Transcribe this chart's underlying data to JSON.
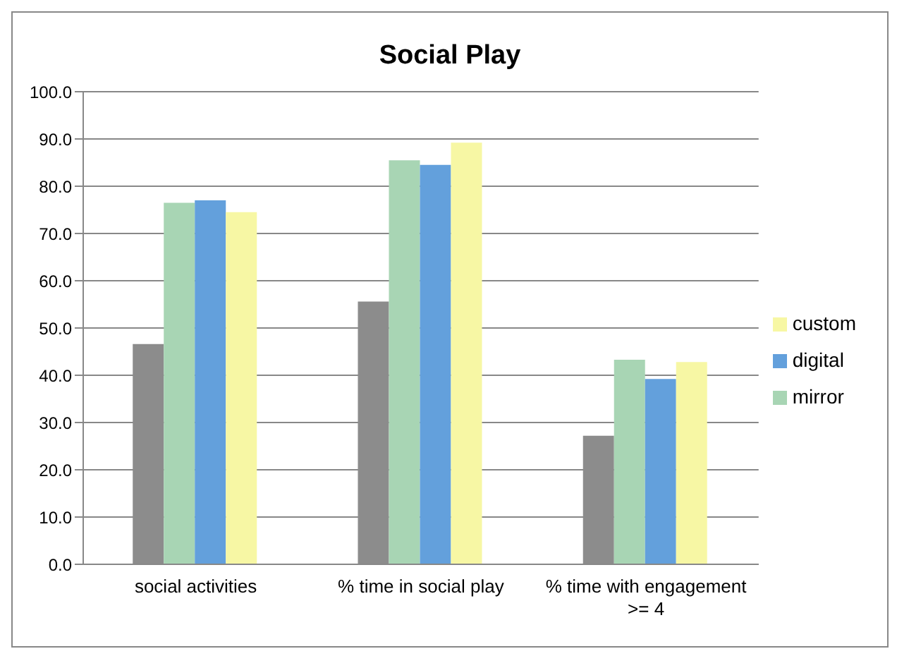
{
  "chart_data": {
    "type": "bar",
    "title": "Social Play",
    "categories": [
      "social activities",
      "% time in social play",
      "% time with engagement >= 4"
    ],
    "series": [
      {
        "color": "#8c8c8c",
        "values": [
          46.6,
          55.6,
          27.2
        ]
      },
      {
        "name": "mirror",
        "color": "#a8d5b4",
        "values": [
          76.5,
          85.5,
          43.3
        ]
      },
      {
        "name": "digital",
        "color": "#63a0dc",
        "values": [
          77.0,
          84.5,
          39.2
        ]
      },
      {
        "name": "custom",
        "color": "#f7f7a4",
        "values": [
          74.5,
          89.2,
          42.8
        ]
      }
    ],
    "ylim": [
      0,
      100
    ],
    "yticks": [
      {
        "value": 0,
        "label": "0.0"
      },
      {
        "value": 10,
        "label": "10.0"
      },
      {
        "value": 20,
        "label": "20.0"
      },
      {
        "value": 30,
        "label": "30.0"
      },
      {
        "value": 40,
        "label": "40.0"
      },
      {
        "value": 50,
        "label": "50.0"
      },
      {
        "value": 60,
        "label": "60.0"
      },
      {
        "value": 70,
        "label": "70.0"
      },
      {
        "value": 80,
        "label": "80.0"
      },
      {
        "value": 90,
        "label": "90.0"
      },
      {
        "value": 100,
        "label": "100.0"
      }
    ],
    "grid": "y",
    "legend": "right"
  }
}
